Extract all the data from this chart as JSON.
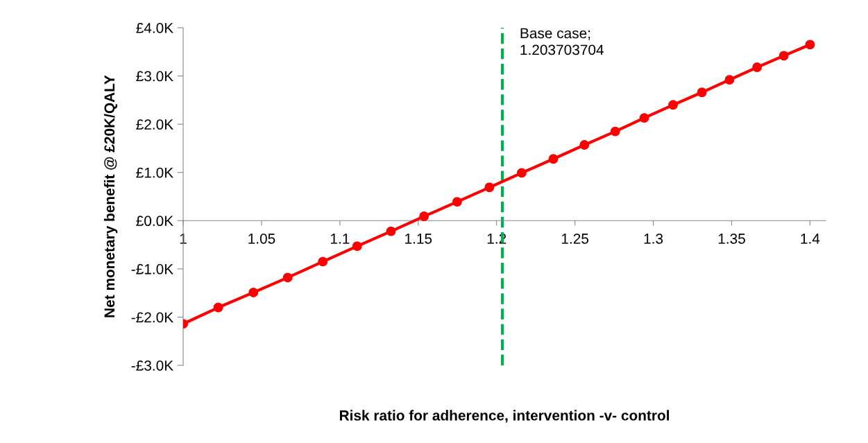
{
  "chart_data": {
    "type": "line",
    "xlabel": "Risk ratio for adherence, intervention -v- control",
    "ylabel": "Net monetary benefit @ £20K/QALY",
    "x": [
      1.0,
      1.0224,
      1.0448,
      1.0667,
      1.0891,
      1.111,
      1.1326,
      1.1537,
      1.1748,
      1.1954,
      1.216,
      1.2362,
      1.256,
      1.2757,
      1.2942,
      1.3126,
      1.331,
      1.3486,
      1.3662,
      1.3833,
      1.4
    ],
    "series": [
      {
        "color": "#ff0000",
        "values": [
          -2.14,
          -1.8,
          -1.49,
          -1.18,
          -0.85,
          -0.53,
          -0.22,
          0.09,
          0.39,
          0.69,
          0.99,
          1.28,
          1.57,
          1.85,
          2.13,
          2.4,
          2.66,
          2.92,
          3.18,
          3.42,
          3.65
        ]
      }
    ],
    "marker": "circle",
    "line_style": "solid",
    "grid": false,
    "legend": false,
    "xlim": [
      1,
      1.41
    ],
    "xticks": [
      1,
      1.05,
      1.1,
      1.15,
      1.2,
      1.25,
      1.3,
      1.35,
      1.4
    ],
    "ylim": [
      -3,
      4
    ],
    "yticks": [
      {
        "value": -3,
        "label": "-£3.0K"
      },
      {
        "value": -2,
        "label": "-£2.0K"
      },
      {
        "value": -1,
        "label": "-£1.0K"
      },
      {
        "value": 0,
        "label": "£0.0K"
      },
      {
        "value": 1,
        "label": "£1.0K"
      },
      {
        "value": 2,
        "label": "£2.0K"
      },
      {
        "value": 3,
        "label": "£3.0K"
      },
      {
        "value": 4,
        "label": "£4.0K"
      }
    ],
    "ref_lines": [
      {
        "axis": "x",
        "value": 1.203703704,
        "label": "Base case;\n1.203703704",
        "color": "#00b050",
        "line_style": "dashed"
      }
    ]
  }
}
